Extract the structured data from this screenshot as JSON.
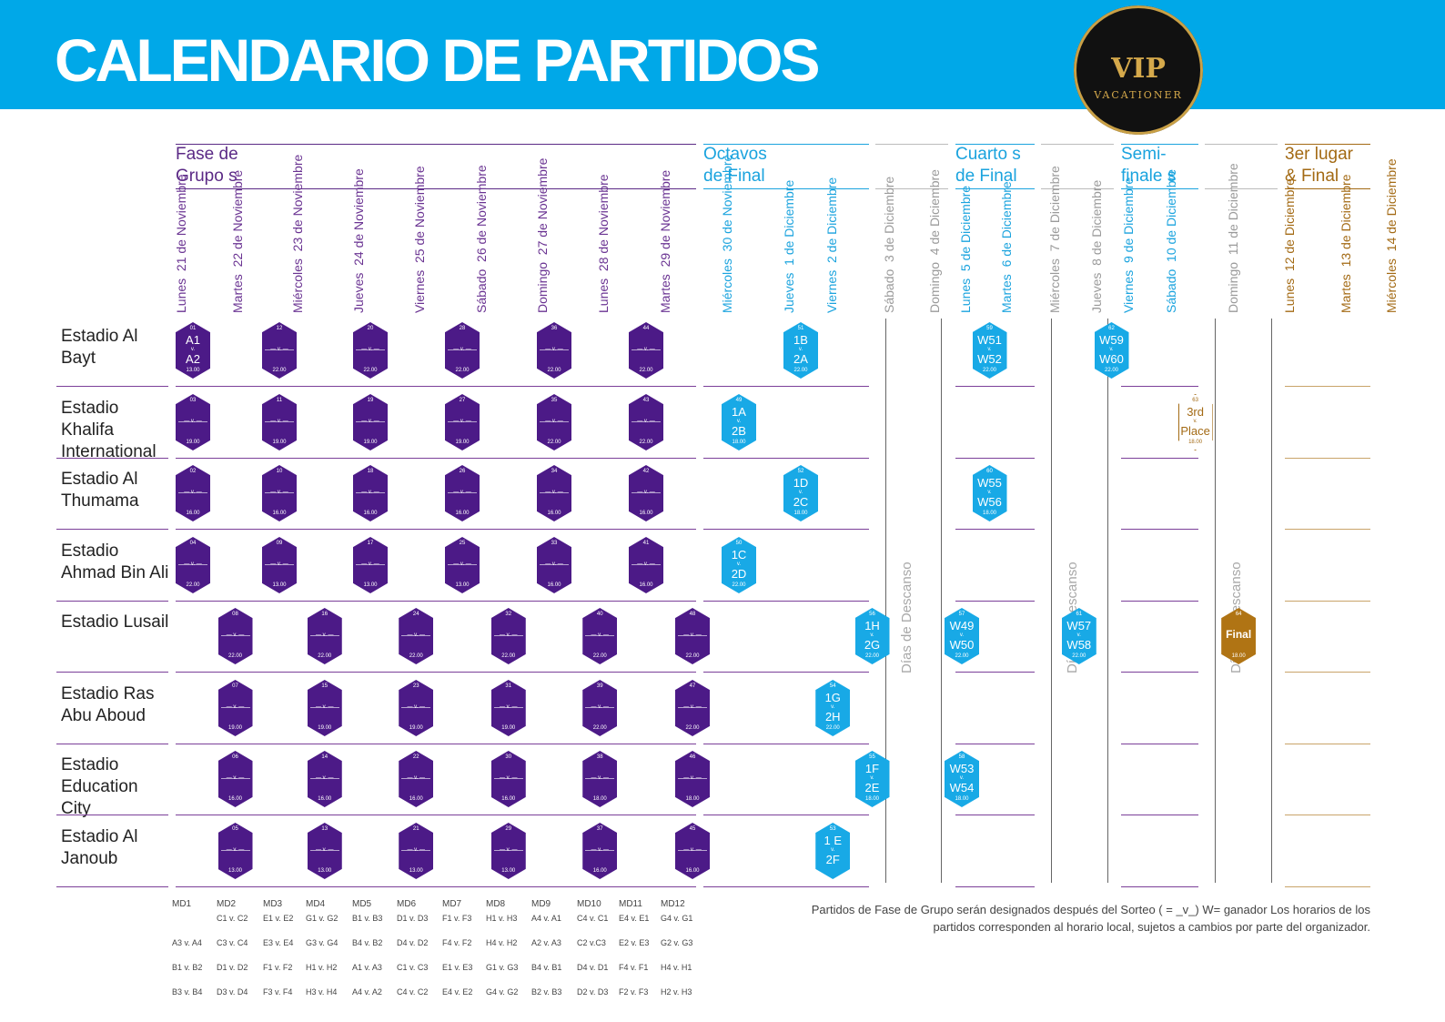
{
  "title": "CALENDARIO DE PARTIDOS",
  "logo": {
    "main": "VIP",
    "sub": "VACATIONER"
  },
  "colors": {
    "purple": "#4c1a87",
    "blue": "#18a9e6",
    "gold": "#b07414",
    "header": "#00a8e8"
  },
  "phases": [
    {
      "label": "Fase de Grupo s",
      "color": "#5b2a86"
    },
    {
      "label": "Octavos de Final",
      "color": "#1aa3de"
    },
    {
      "label": "Cuarto s de Final",
      "color": "#1aa3de"
    },
    {
      "label": "Semi- finale s",
      "color": "#1aa3de"
    },
    {
      "label": "3er lugar & Final",
      "color": "#a36a14"
    }
  ],
  "dates": [
    {
      "day": "Lunes",
      "date": "21 de Noviembre"
    },
    {
      "day": "Martes",
      "date": "22 de Noviembre"
    },
    {
      "day": "Miércoles",
      "date": "23 de Noviembre"
    },
    {
      "day": "Jueves",
      "date": "24 de Noviembre"
    },
    {
      "day": "Viernes",
      "date": "25 de Noviembre"
    },
    {
      "day": "Sábado",
      "date": "26 de Noviembre"
    },
    {
      "day": "Domingo",
      "date": "27 de Noviembre"
    },
    {
      "day": "Lunes",
      "date": "28 de Noviembre"
    },
    {
      "day": "Martes",
      "date": "29 de Noviembre"
    },
    {
      "day": "Miércoles",
      "date": "30 de Noviembre"
    },
    {
      "day": "Jueves",
      "date": "1 de Diciembre"
    },
    {
      "day": "Viernes",
      "date": "2 de Diciembre"
    },
    {
      "day": "Sábado",
      "date": "3 de Diciembre"
    },
    {
      "day": "Domingo",
      "date": "4 de Diciembre"
    },
    {
      "day": "Lunes",
      "date": "5 de Diciembre"
    },
    {
      "day": "Martes",
      "date": "6 de Diciembre"
    },
    {
      "day": "Miércoles",
      "date": "7 de Diciembre"
    },
    {
      "day": "Jueves",
      "date": "8 de Diciembre"
    },
    {
      "day": "Viernes",
      "date": "9 de Diciembre"
    },
    {
      "day": "Sábado",
      "date": "10 de Diciembre"
    },
    {
      "day": "Domingo",
      "date": "11 de Diciembre"
    },
    {
      "day": "Lunes",
      "date": "12 de Diciembre"
    },
    {
      "day": "Martes",
      "date": "13 de Diciembre"
    },
    {
      "day": "Miércoles",
      "date": "14 de Diciembre"
    }
  ],
  "stadiums": [
    "Estadio Al Bayt",
    "Estadio Khalifa International",
    "Estadio Al Thumama",
    "Estadio Ahmad Bin Ali",
    "Estadio Lusail",
    "Estadio Ras Abu Aboud",
    "Estadio Education City",
    "Estadio Al Janoub"
  ],
  "rest_label": "Días de Descanso",
  "matches": [
    {
      "row": 0,
      "col": 0,
      "n": "01",
      "t": "A1",
      "b": "A2",
      "time": "13.00",
      "c": "p"
    },
    {
      "row": 0,
      "col": 1.5,
      "n": "12",
      "t": "",
      "b": "",
      "time": "22.00",
      "c": "p"
    },
    {
      "row": 0,
      "col": 3,
      "n": "20",
      "t": "",
      "b": "",
      "time": "22.00",
      "c": "p"
    },
    {
      "row": 0,
      "col": 4.5,
      "n": "28",
      "t": "",
      "b": "",
      "time": "22.00",
      "c": "p"
    },
    {
      "row": 0,
      "col": 6,
      "n": "36",
      "t": "",
      "b": "",
      "time": "22.00",
      "c": "p"
    },
    {
      "row": 0,
      "col": 7.5,
      "n": "44",
      "t": "",
      "b": "",
      "time": "22.00",
      "c": "p"
    },
    {
      "row": 0,
      "col": 10,
      "n": "51",
      "t": "1B",
      "b": "2A",
      "time": "22.00",
      "c": "b"
    },
    {
      "row": 0,
      "col": 14.3,
      "n": "59",
      "t": "W51",
      "b": "W52",
      "time": "22.00",
      "c": "b"
    },
    {
      "row": 0,
      "col": 17.1,
      "n": "62",
      "t": "W59",
      "b": "W60",
      "time": "22.00",
      "c": "b"
    },
    {
      "row": 1,
      "col": 0,
      "n": "03",
      "t": "",
      "b": "",
      "time": "19.00",
      "c": "p"
    },
    {
      "row": 1,
      "col": 1.5,
      "n": "11",
      "t": "",
      "b": "",
      "time": "19.00",
      "c": "p"
    },
    {
      "row": 1,
      "col": 3,
      "n": "19",
      "t": "",
      "b": "",
      "time": "19.00",
      "c": "p"
    },
    {
      "row": 1,
      "col": 4.5,
      "n": "27",
      "t": "",
      "b": "",
      "time": "19.00",
      "c": "p"
    },
    {
      "row": 1,
      "col": 6,
      "n": "35",
      "t": "",
      "b": "",
      "time": "22.00",
      "c": "p"
    },
    {
      "row": 1,
      "col": 7.5,
      "n": "43",
      "t": "",
      "b": "",
      "time": "22.00",
      "c": "p"
    },
    {
      "row": 1,
      "col": 9,
      "n": "49",
      "t": "1A",
      "b": "2B",
      "time": "18.00",
      "c": "b"
    },
    {
      "row": 1,
      "col": 19.2,
      "n": "63",
      "t": "3rd",
      "b": "Place",
      "time": "18.00",
      "c": "w"
    },
    {
      "row": 2,
      "col": 0,
      "n": "02",
      "t": "",
      "b": "",
      "time": "16.00",
      "c": "p"
    },
    {
      "row": 2,
      "col": 1.5,
      "n": "10",
      "t": "",
      "b": "",
      "time": "16.00",
      "c": "p"
    },
    {
      "row": 2,
      "col": 3,
      "n": "18",
      "t": "",
      "b": "",
      "time": "16.00",
      "c": "p"
    },
    {
      "row": 2,
      "col": 4.5,
      "n": "26",
      "t": "",
      "b": "",
      "time": "16.00",
      "c": "p"
    },
    {
      "row": 2,
      "col": 6,
      "n": "34",
      "t": "",
      "b": "",
      "time": "16.00",
      "c": "p"
    },
    {
      "row": 2,
      "col": 7.5,
      "n": "42",
      "t": "",
      "b": "",
      "time": "16.00",
      "c": "p"
    },
    {
      "row": 2,
      "col": 10,
      "n": "52",
      "t": "1D",
      "b": "2C",
      "time": "18.00",
      "c": "b"
    },
    {
      "row": 2,
      "col": 14.3,
      "n": "60",
      "t": "W55",
      "b": "W56",
      "time": "18.00",
      "c": "b"
    },
    {
      "row": 3,
      "col": 0,
      "n": "04",
      "t": "",
      "b": "",
      "time": "22.00",
      "c": "p"
    },
    {
      "row": 3,
      "col": 1.5,
      "n": "09",
      "t": "",
      "b": "",
      "time": "13.00",
      "c": "p"
    },
    {
      "row": 3,
      "col": 3,
      "n": "17",
      "t": "",
      "b": "",
      "time": "13.00",
      "c": "p"
    },
    {
      "row": 3,
      "col": 4.5,
      "n": "25",
      "t": "",
      "b": "",
      "time": "13.00",
      "c": "p"
    },
    {
      "row": 3,
      "col": 6,
      "n": "33",
      "t": "",
      "b": "",
      "time": "16.00",
      "c": "p"
    },
    {
      "row": 3,
      "col": 7.5,
      "n": "41",
      "t": "",
      "b": "",
      "time": "16.00",
      "c": "p"
    },
    {
      "row": 3,
      "col": 9,
      "n": "50",
      "t": "1C",
      "b": "2D",
      "time": "22.00",
      "c": "b"
    },
    {
      "row": 4,
      "col": 0.75,
      "n": "08",
      "t": "",
      "b": "",
      "time": "22.00",
      "c": "p"
    },
    {
      "row": 4,
      "col": 2.25,
      "n": "16",
      "t": "",
      "b": "",
      "time": "22.00",
      "c": "p"
    },
    {
      "row": 4,
      "col": 3.75,
      "n": "24",
      "t": "",
      "b": "",
      "time": "22.00",
      "c": "p"
    },
    {
      "row": 4,
      "col": 5.25,
      "n": "32",
      "t": "",
      "b": "",
      "time": "22.00",
      "c": "p"
    },
    {
      "row": 4,
      "col": 6.75,
      "n": "40",
      "t": "",
      "b": "",
      "time": "22.00",
      "c": "p"
    },
    {
      "row": 4,
      "col": 8.25,
      "n": "48",
      "t": "",
      "b": "",
      "time": "22.00",
      "c": "p"
    },
    {
      "row": 4,
      "col": 11.5,
      "n": "56",
      "t": "1H",
      "b": "2G",
      "time": "22.00",
      "c": "b"
    },
    {
      "row": 4,
      "col": 13.5,
      "n": "57",
      "t": "W49",
      "b": "W50",
      "time": "22.00",
      "c": "b"
    },
    {
      "row": 4,
      "col": 16.3,
      "n": "61",
      "t": "W57",
      "b": "W58",
      "time": "22.00",
      "c": "b"
    },
    {
      "row": 4,
      "col": 19.9,
      "n": "64",
      "t": "Final",
      "b": "",
      "time": "18.00",
      "c": "o"
    },
    {
      "row": 5,
      "col": 0.75,
      "n": "07",
      "t": "",
      "b": "",
      "time": "19.00",
      "c": "p"
    },
    {
      "row": 5,
      "col": 2.25,
      "n": "15",
      "t": "",
      "b": "",
      "time": "19.00",
      "c": "p"
    },
    {
      "row": 5,
      "col": 3.75,
      "n": "23",
      "t": "",
      "b": "",
      "time": "19.00",
      "c": "p"
    },
    {
      "row": 5,
      "col": 5.25,
      "n": "31",
      "t": "",
      "b": "",
      "time": "19.00",
      "c": "p"
    },
    {
      "row": 5,
      "col": 6.75,
      "n": "39",
      "t": "",
      "b": "",
      "time": "22.00",
      "c": "p"
    },
    {
      "row": 5,
      "col": 8.25,
      "n": "47",
      "t": "",
      "b": "",
      "time": "22.00",
      "c": "p"
    },
    {
      "row": 5,
      "col": 10.75,
      "n": "54",
      "t": "1G",
      "b": "2H",
      "time": "22.00",
      "c": "b"
    },
    {
      "row": 6,
      "col": 0.75,
      "n": "06",
      "t": "",
      "b": "",
      "time": "16.00",
      "c": "p"
    },
    {
      "row": 6,
      "col": 2.25,
      "n": "14",
      "t": "",
      "b": "",
      "time": "16.00",
      "c": "p"
    },
    {
      "row": 6,
      "col": 3.75,
      "n": "22",
      "t": "",
      "b": "",
      "time": "16.00",
      "c": "p"
    },
    {
      "row": 6,
      "col": 5.25,
      "n": "30",
      "t": "",
      "b": "",
      "time": "16.00",
      "c": "p"
    },
    {
      "row": 6,
      "col": 6.75,
      "n": "38",
      "t": "",
      "b": "",
      "time": "18.00",
      "c": "p"
    },
    {
      "row": 6,
      "col": 8.25,
      "n": "46",
      "t": "",
      "b": "",
      "time": "18.00",
      "c": "p"
    },
    {
      "row": 6,
      "col": 11.5,
      "n": "55",
      "t": "1F",
      "b": "2E",
      "time": "18.00",
      "c": "b"
    },
    {
      "row": 6,
      "col": 13.5,
      "n": "58",
      "t": "W53",
      "b": "W54",
      "time": "18.00",
      "c": "b"
    },
    {
      "row": 7,
      "col": 0.75,
      "n": "05",
      "t": "",
      "b": "",
      "time": "13.00",
      "c": "p"
    },
    {
      "row": 7,
      "col": 2.25,
      "n": "13",
      "t": "",
      "b": "",
      "time": "13.00",
      "c": "p"
    },
    {
      "row": 7,
      "col": 3.75,
      "n": "21",
      "t": "",
      "b": "",
      "time": "13.00",
      "c": "p"
    },
    {
      "row": 7,
      "col": 5.25,
      "n": "29",
      "t": "",
      "b": "",
      "time": "13.00",
      "c": "p"
    },
    {
      "row": 7,
      "col": 6.75,
      "n": "37",
      "t": "",
      "b": "",
      "time": "16.00",
      "c": "p"
    },
    {
      "row": 7,
      "col": 8.25,
      "n": "45",
      "t": "",
      "b": "",
      "time": "16.00",
      "c": "p"
    },
    {
      "row": 7,
      "col": 10.75,
      "n": "53",
      "t": "1 E",
      "b": "2F",
      "time": "",
      "c": "b"
    }
  ],
  "matchdays": [
    {
      "label": "MD1",
      "games": [
        "",
        "A3 v. A4",
        "B1 v. B2",
        "B3 v. B4"
      ]
    },
    {
      "label": "MD2",
      "games": [
        "C1 v. C2",
        "C3 v. C4",
        "D1 v. D2",
        "D3 v. D4"
      ]
    },
    {
      "label": "MD3",
      "games": [
        "E1 v. E2",
        "E3 v. E4",
        "F1 v. F2",
        "F3 v. F4"
      ]
    },
    {
      "label": "MD4",
      "games": [
        "G1 v. G2",
        "G3 v. G4",
        "H1 v. H2",
        "H3 v. H4"
      ]
    },
    {
      "label": "MD5",
      "games": [
        "B1 v. B3",
        "B4 v. B2",
        "A1 v. A3",
        "A4 v. A2"
      ]
    },
    {
      "label": "MD6",
      "games": [
        "D1 v. D3",
        "D4 v. D2",
        "C1 v. C3",
        "C4 v. C2"
      ]
    },
    {
      "label": "MD7",
      "games": [
        "F1 v. F3",
        "F4 v. F2",
        "E1 v. E3",
        "E4 v. E2"
      ]
    },
    {
      "label": "MD8",
      "games": [
        "H1 v. H3",
        "H4 v. H2",
        "G1 v. G3",
        "G4 v. G2"
      ]
    },
    {
      "label": "MD9",
      "games": [
        "A4 v. A1",
        "A2 v. A3",
        "B4 v. B1",
        "B2 v. B3"
      ]
    },
    {
      "label": "MD10",
      "games": [
        "C4 v. C1",
        "C2 v.C3",
        "D4 v. D1",
        "D2 v. D3"
      ]
    },
    {
      "label": "MD11",
      "games": [
        "E4 v. E1",
        "E2 v. E3",
        "F4 v. F1",
        "F2 v. F3"
      ]
    },
    {
      "label": "MD12",
      "games": [
        "G4 v. G1",
        "G2 v. G3",
        "H4 v. H1",
        "H2 v. H3"
      ]
    }
  ],
  "note": "Partidos de Fase de Grupo serán designados después del Sorteo ( = _v_) W= ganador Los horarios de los partidos corresponden al horario local, sujetos a cambios por parte del organizador."
}
